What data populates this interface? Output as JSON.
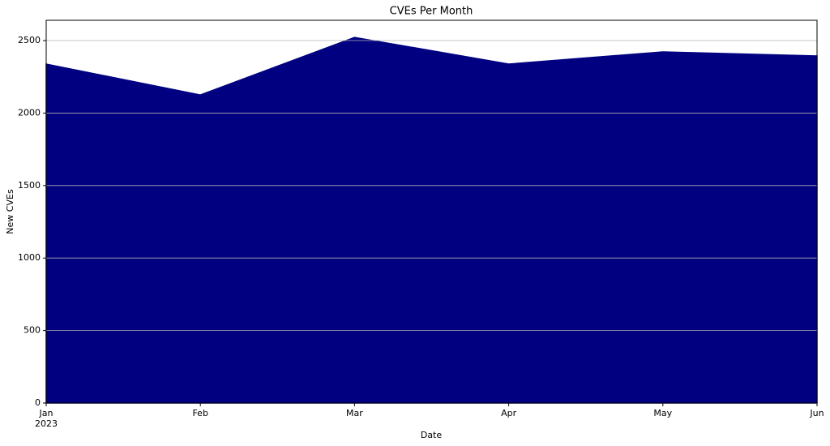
{
  "chart_data": {
    "type": "area",
    "title": "CVEs Per Month",
    "xlabel": "Date",
    "ylabel": "New CVEs",
    "categories": [
      "Jan",
      "Feb",
      "Mar",
      "Apr",
      "May",
      "Jun"
    ],
    "x_sublabel": "2023",
    "series": [
      {
        "name": "New CVEs",
        "color": "#000080",
        "values": [
          2338,
          2125,
          2522,
          2338,
          2422,
          2394
        ]
      }
    ],
    "ylim": [
      0,
      2640
    ],
    "yticks": [
      0,
      500,
      1000,
      1500,
      2000,
      2500
    ],
    "grid": true,
    "grid_axis": "y"
  }
}
